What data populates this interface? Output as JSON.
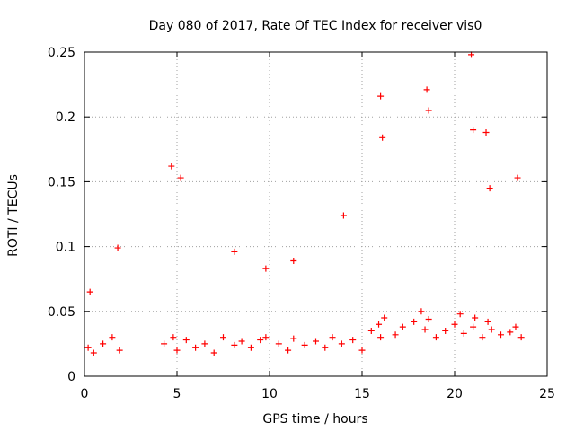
{
  "chart_data": {
    "type": "scatter",
    "title": "Day 080 of 2017, Rate Of TEC Index for receiver vis0",
    "xlabel": "GPS time / hours",
    "ylabel": "ROTI / TECUs",
    "xlim": [
      0,
      25
    ],
    "ylim": [
      0,
      0.25
    ],
    "xticks": [
      "0",
      "5",
      "10",
      "15",
      "20",
      "25"
    ],
    "yticks": [
      "0",
      "0.05",
      "0.1",
      "0.15",
      "0.2",
      "0.25"
    ],
    "grid": true,
    "marker": "plus",
    "color": "#ff0000",
    "x": [
      0.2,
      0.5,
      1.0,
      1.5,
      1.9,
      4.3,
      4.8,
      5.0,
      5.5,
      6.0,
      6.5,
      7.0,
      7.5,
      8.1,
      8.5,
      9.0,
      9.5,
      9.8,
      10.5,
      11.0,
      11.3,
      11.9,
      12.5,
      13.0,
      13.4,
      13.9,
      14.5,
      15.0,
      15.5,
      15.9,
      16.0,
      16.2,
      16.8,
      17.2,
      17.8,
      18.2,
      18.4,
      18.6,
      19.0,
      19.5,
      20.0,
      20.3,
      20.5,
      21.0,
      21.1,
      21.5,
      21.8,
      22.0,
      22.5,
      23.0,
      23.3,
      23.6,
      0.3,
      1.8,
      4.7,
      5.2,
      8.1,
      9.8,
      11.3,
      14.0,
      16.0,
      16.1,
      18.5,
      18.6,
      20.9,
      21.0,
      21.7,
      21.9,
      23.4
    ],
    "y": [
      0.022,
      0.018,
      0.025,
      0.03,
      0.02,
      0.025,
      0.03,
      0.02,
      0.028,
      0.022,
      0.025,
      0.018,
      0.03,
      0.024,
      0.027,
      0.022,
      0.028,
      0.03,
      0.025,
      0.02,
      0.029,
      0.024,
      0.027,
      0.022,
      0.03,
      0.025,
      0.028,
      0.02,
      0.035,
      0.04,
      0.03,
      0.045,
      0.032,
      0.038,
      0.042,
      0.05,
      0.036,
      0.044,
      0.03,
      0.035,
      0.04,
      0.048,
      0.033,
      0.038,
      0.045,
      0.03,
      0.042,
      0.036,
      0.032,
      0.034,
      0.038,
      0.03,
      0.065,
      0.099,
      0.162,
      0.153,
      0.096,
      0.083,
      0.089,
      0.124,
      0.216,
      0.184,
      0.221,
      0.205,
      0.248,
      0.19,
      0.188,
      0.145,
      0.153
    ]
  }
}
